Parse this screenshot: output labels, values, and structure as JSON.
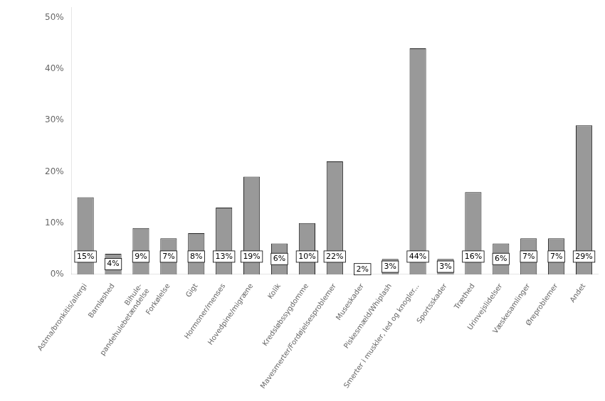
{
  "chart_data": {
    "type": "bar",
    "categories": [
      "Astma/bronkitis/allergi",
      "Barnløshed",
      "Bihule-\npandehulebetændelse",
      "Forkølelse",
      "Gigt",
      "Hormoner/menses",
      "Hovedpine/migræne",
      "Kolik",
      "Kredsløbssygdomme",
      "Mavesmerter/Fordøjelsesproblemer",
      "Museskader",
      "Piskesmæld/Whiplash",
      "Smerter i muskler, led og knogler...",
      "Sportsskader",
      "Træthed",
      "Urinvejslidelser",
      "Væskesamlinger",
      "Øreproblemer",
      "Andet"
    ],
    "values": [
      15,
      4,
      9,
      7,
      8,
      13,
      19,
      6,
      10,
      22,
      2,
      3,
      44,
      3,
      16,
      6,
      7,
      7,
      29
    ],
    "value_labels": [
      "15%",
      "4%",
      "9%",
      "7%",
      "8%",
      "13%",
      "19%",
      "6%",
      "10%",
      "22%",
      "2%",
      "3%",
      "44%",
      "3%",
      "16%",
      "6%",
      "7%",
      "7%",
      "29%"
    ],
    "data_labels": true,
    "color": "#999999",
    "ylim": [
      0,
      52
    ],
    "yticks": [
      {
        "value": 0,
        "label": "0%"
      },
      {
        "value": 10,
        "label": "10%"
      },
      {
        "value": 20,
        "label": "20%"
      },
      {
        "value": 30,
        "label": "30%"
      },
      {
        "value": 40,
        "label": "40%"
      },
      {
        "value": 50,
        "label": "50%"
      }
    ],
    "grid": false
  }
}
